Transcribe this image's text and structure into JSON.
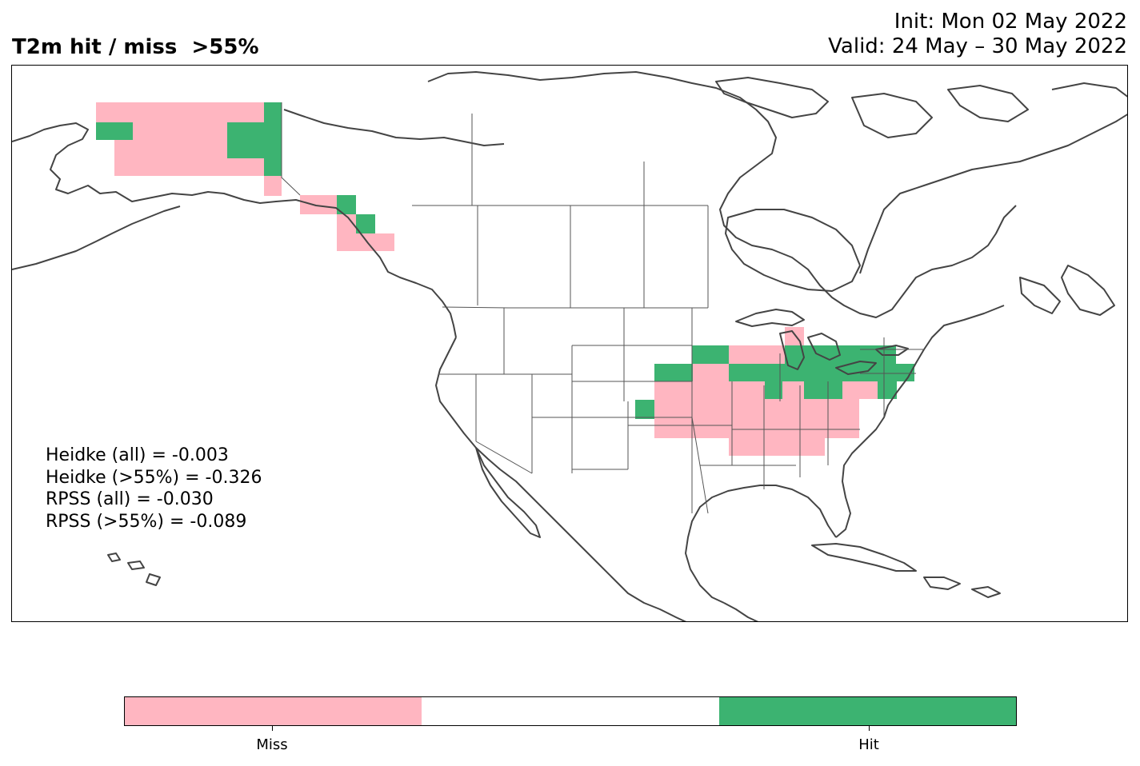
{
  "title": {
    "left": "T2m hit / miss  >55%",
    "init": "Init: Mon 02 May 2022",
    "valid": "Valid: 24 May – 30 May 2022"
  },
  "scores": [
    "Heidke (all) = -0.003",
    "Heidke (>55%) = -0.326",
    "RPSS (all) = -0.030",
    "RPSS (>55%) = -0.089"
  ],
  "legend": {
    "colors": {
      "miss": "#ffb6c1",
      "neutral": "#ffffff",
      "hit": "#3cb371"
    },
    "labels": {
      "miss": "Miss",
      "hit": "Hit"
    }
  },
  "map": {
    "region": "North America",
    "coastline_color": "#444444",
    "border_color": "#555555",
    "cells": [
      {
        "class": "miss",
        "region": "Alaska"
      },
      {
        "class": "hit",
        "region": "Alaska"
      },
      {
        "class": "miss",
        "region": "Southeast Alaska"
      },
      {
        "class": "hit",
        "region": "Southeast Alaska"
      },
      {
        "class": "hit",
        "region": "Great Lakes / Ohio Valley / Northeast"
      },
      {
        "class": "miss",
        "region": "Central Plains / Mid-South"
      }
    ]
  }
}
